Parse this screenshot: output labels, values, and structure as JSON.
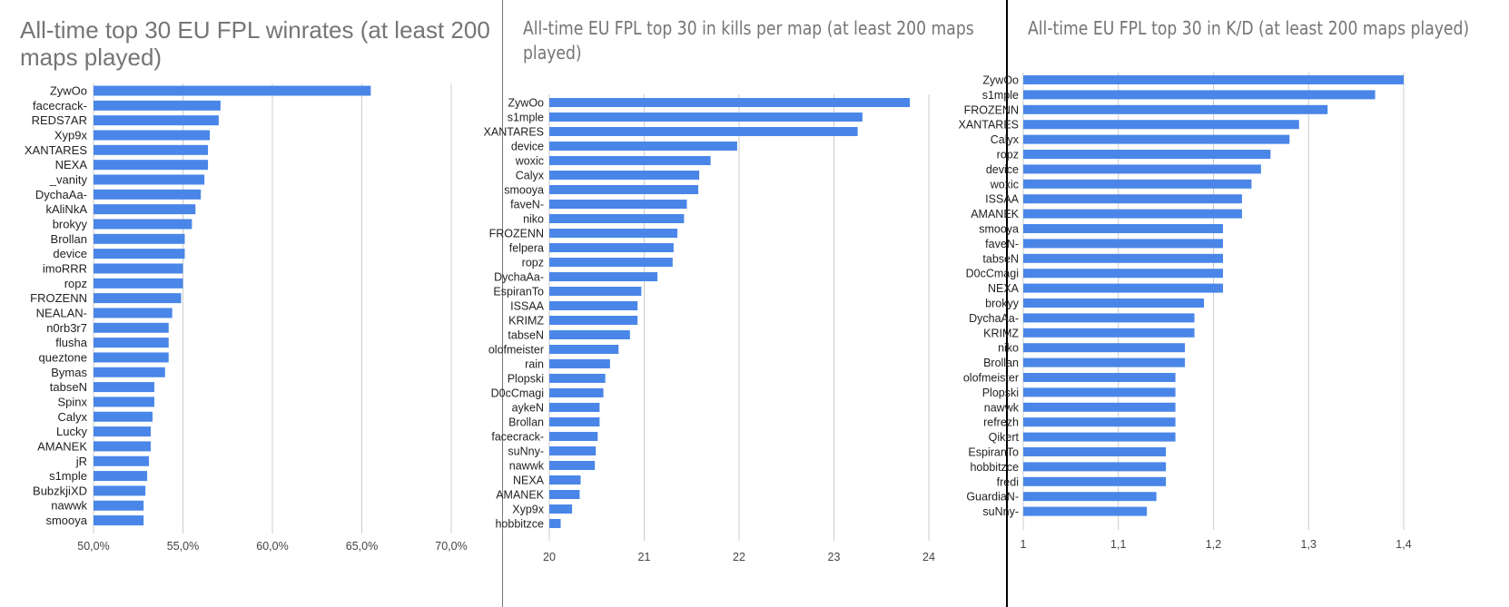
{
  "chart_data": [
    {
      "type": "bar",
      "orientation": "horizontal",
      "title": "All-time top 30 EU FPL winrates (at least 200 maps played)",
      "xlabel": "",
      "ylabel": "",
      "xlim": [
        50,
        70
      ],
      "grid": true,
      "ticks": [
        50,
        55,
        60,
        65,
        70
      ],
      "tick_labels": [
        "50,0%",
        "55,0%",
        "60,0%",
        "65,0%",
        "70,0%"
      ],
      "categories": [
        "ZywOo",
        "facecrack-",
        "REDS7AR",
        "Xyp9x",
        "XANTARES",
        "NEXA",
        "_vanity",
        "DychaAa-",
        "kAliNkA",
        "brokyy",
        "Brollan",
        "device",
        "imoRRR",
        "ropz",
        "FROZENN",
        "NEALAN-",
        "n0rb3r7",
        "flusha",
        "queztone",
        "Bymas",
        "tabseN",
        "Spinx",
        "Calyx",
        "Lucky",
        "AMANEK",
        "jR",
        "s1mple",
        "BubzkjiXD",
        "nawwk",
        "smooya"
      ],
      "values": [
        65.5,
        57.1,
        57.0,
        56.5,
        56.4,
        56.4,
        56.2,
        56.0,
        55.7,
        55.5,
        55.1,
        55.1,
        55.0,
        55.0,
        54.9,
        54.4,
        54.2,
        54.2,
        54.2,
        54.0,
        53.4,
        53.4,
        53.3,
        53.2,
        53.2,
        53.1,
        53.0,
        52.9,
        52.8,
        52.8
      ]
    },
    {
      "type": "bar",
      "orientation": "horizontal",
      "title": "All-time EU FPL top 30 in kills per map (at least 200 maps played)",
      "xlabel": "",
      "ylabel": "",
      "xlim": [
        20,
        24
      ],
      "grid": true,
      "ticks": [
        20,
        21,
        22,
        23,
        24
      ],
      "tick_labels": [
        "20",
        "21",
        "22",
        "23",
        "24"
      ],
      "categories": [
        "ZywOo",
        "s1mple",
        "XANTARES",
        "device",
        "woxic",
        "Calyx",
        "smooya",
        "faveN-",
        "niko",
        "FROZENN",
        "felpera",
        "ropz",
        "DychaAa-",
        "EspiranTo",
        "ISSAA",
        "KRIMZ",
        "tabseN",
        "olofmeister",
        "rain",
        "Plopski",
        "D0cCmagi",
        "aykeN",
        "Brollan",
        "facecrack-",
        "suNny-",
        "nawwk",
        "NEXA",
        "AMANEK",
        "Xyp9x",
        "hobbitzce"
      ],
      "values": [
        23.8,
        23.3,
        23.25,
        21.98,
        21.7,
        21.58,
        21.57,
        21.45,
        21.42,
        21.35,
        21.31,
        21.3,
        21.14,
        20.97,
        20.93,
        20.93,
        20.85,
        20.73,
        20.64,
        20.59,
        20.57,
        20.53,
        20.53,
        20.51,
        20.49,
        20.48,
        20.33,
        20.32,
        20.24,
        20.12
      ]
    },
    {
      "type": "bar",
      "orientation": "horizontal",
      "title": "All-time EU FPL top 30 in K/D (at least 200 maps played)",
      "xlabel": "",
      "ylabel": "",
      "xlim": [
        1.0,
        1.4
      ],
      "grid": true,
      "ticks": [
        1.0,
        1.1,
        1.2,
        1.3,
        1.4
      ],
      "tick_labels": [
        "1",
        "1,1",
        "1,2",
        "1,3",
        "1,4"
      ],
      "categories": [
        "ZywOo",
        "s1mple",
        "FROZENN",
        "XANTARES",
        "Calyx",
        "ropz",
        "device",
        "woxic",
        "ISSAA",
        "AMANEK",
        "smooya",
        "faveN-",
        "tabseN",
        "D0cCmagi",
        "NEXA",
        "brokyy",
        "DychaAa-",
        "KRIMZ",
        "niko",
        "Brollan",
        "olofmeister",
        "Plopski",
        "nawwk",
        "refrezh",
        "Qikert",
        "EspiranTo",
        "hobbitzce",
        "fredi",
        "GuardiaN-",
        "suNny-"
      ],
      "values": [
        1.4,
        1.37,
        1.32,
        1.29,
        1.28,
        1.26,
        1.25,
        1.24,
        1.23,
        1.23,
        1.21,
        1.21,
        1.21,
        1.21,
        1.21,
        1.19,
        1.18,
        1.18,
        1.17,
        1.17,
        1.16,
        1.16,
        1.16,
        1.16,
        1.16,
        1.15,
        1.15,
        1.15,
        1.14,
        1.13
      ]
    }
  ]
}
